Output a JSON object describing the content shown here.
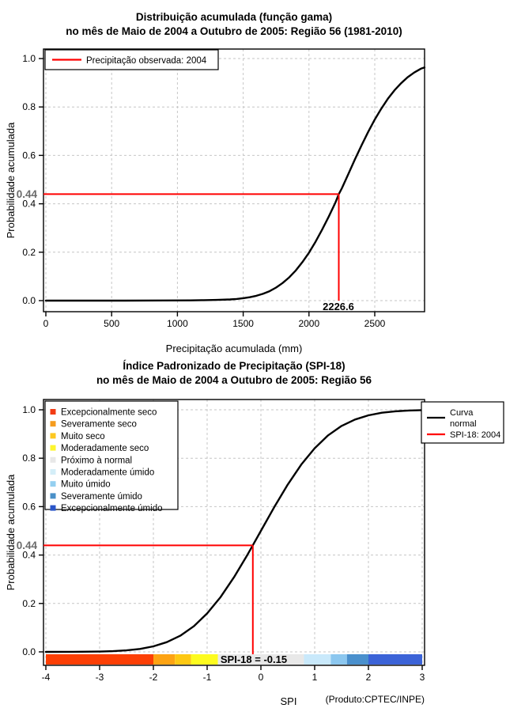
{
  "page": {
    "background": "#ffffff",
    "footer_credit": "(Produto:CPTEC/INPE)"
  },
  "chart_data": [
    {
      "type": "line",
      "title_line1": "Distribuição acumulada (função gama)",
      "title_line2": "no mês de Maio de 2004 a Outubro de 2005: Região 56 (1981-2010)",
      "xlabel": "Precipitação acumulada (mm)",
      "ylabel": "Probabilidade acumulada",
      "xlim": [
        0,
        2878
      ],
      "ylim": [
        0,
        1
      ],
      "grid": true,
      "x_ticks": [
        0,
        500,
        1000,
        1500,
        2000,
        2500
      ],
      "x_tick_labels": [
        "0",
        "500",
        "1000",
        "1500",
        "2000",
        "2500"
      ],
      "y_tick_values": [
        0,
        0.2,
        0.4,
        0.6,
        0.8,
        1.0
      ],
      "y_tick_labels": [
        "0.0",
        "0.2",
        "0.4",
        "0.6",
        "0.8",
        "1.0"
      ],
      "legend": {
        "position": "top-left",
        "items": [
          {
            "label": "Precipitação observada: 2004",
            "color": "#ff0000"
          }
        ]
      },
      "series": [
        {
          "name": "Distribuição acumulada (função gama)",
          "color": "#000000",
          "points": [
            [
              0,
              0
            ],
            [
              300,
              0
            ],
            [
              600,
              0
            ],
            [
              900,
              0.0005
            ],
            [
              1100,
              0.001
            ],
            [
              1200,
              0.002
            ],
            [
              1300,
              0.003
            ],
            [
              1400,
              0.005
            ],
            [
              1450,
              0.007
            ],
            [
              1500,
              0.01
            ],
            [
              1550,
              0.014
            ],
            [
              1600,
              0.02
            ],
            [
              1650,
              0.028
            ],
            [
              1700,
              0.039
            ],
            [
              1750,
              0.054
            ],
            [
              1800,
              0.073
            ],
            [
              1850,
              0.096
            ],
            [
              1900,
              0.125
            ],
            [
              1950,
              0.159
            ],
            [
              2000,
              0.198
            ],
            [
              2050,
              0.243
            ],
            [
              2100,
              0.293
            ],
            [
              2150,
              0.347
            ],
            [
              2200,
              0.404
            ],
            [
              2226.6,
              0.44
            ],
            [
              2250,
              0.464
            ],
            [
              2300,
              0.524
            ],
            [
              2350,
              0.584
            ],
            [
              2400,
              0.642
            ],
            [
              2450,
              0.697
            ],
            [
              2500,
              0.748
            ],
            [
              2550,
              0.793
            ],
            [
              2600,
              0.834
            ],
            [
              2650,
              0.869
            ],
            [
              2700,
              0.898
            ],
            [
              2750,
              0.923
            ],
            [
              2800,
              0.942
            ],
            [
              2850,
              0.958
            ],
            [
              2878,
              0.963
            ]
          ]
        }
      ],
      "marker": {
        "x": 2226.6,
        "y": 0.44,
        "x_label": "2226.6",
        "y_label": "0.44",
        "color": "#ff0000"
      }
    },
    {
      "type": "line",
      "title_line1": "Índice Padronizado de Precipitação (SPI-18)",
      "title_line2": "no mês de Maio de 2004 a Outubro de 2005: Região 56",
      "xlabel": "SPI",
      "ylabel": "Probabilidade acumulada",
      "xlim": [
        -4,
        3
      ],
      "ylim": [
        0,
        1
      ],
      "grid": true,
      "x_ticks": [
        -4,
        -3,
        -2,
        -1,
        0,
        1,
        2,
        3
      ],
      "x_tick_labels": [
        "-4",
        "-3",
        "-2",
        "-1",
        "0",
        "1",
        "2",
        "3"
      ],
      "y_tick_values": [
        0,
        0.2,
        0.4,
        0.6,
        0.8,
        1.0
      ],
      "y_tick_labels": [
        "0.0",
        "0.2",
        "0.4",
        "0.6",
        "0.8",
        "1.0"
      ],
      "categories_legend": [
        {
          "label": "Excepcionalmente seco",
          "color": "#f23c14"
        },
        {
          "label": "Severamente seco",
          "color": "#f59c1e"
        },
        {
          "label": "Muito seco",
          "color": "#fdc821"
        },
        {
          "label": "Moderadamente seco",
          "color": "#fdf52d"
        },
        {
          "label": "Próximo à normal",
          "color": "#e8e8e8"
        },
        {
          "label": "Moderadamente úmido",
          "color": "#d4eef8"
        },
        {
          "label": "Muito úmido",
          "color": "#94cff0"
        },
        {
          "label": "Severamente úmido",
          "color": "#4a90c8"
        },
        {
          "label": "Excepcionalmente úmido",
          "color": "#2a55c8"
        }
      ],
      "legend_right": {
        "items": [
          {
            "lines": [
              "Curva",
              "normal"
            ],
            "color": "#000000"
          },
          {
            "lines": [
              "SPI-18: 2004"
            ],
            "color": "#ff0000"
          }
        ]
      },
      "colorbar": {
        "boundaries": [
          -4,
          -2,
          -1.6,
          -1.3,
          -0.8,
          0.8,
          1.3,
          1.6,
          2,
          3
        ],
        "colors": [
          "#fc3f05",
          "#fda313",
          "#fdc813",
          "#fdfb1f",
          "#e8e8e8",
          "#c9e9fb",
          "#8cc7ef",
          "#4a90cd",
          "#3b63d7"
        ]
      },
      "series": [
        {
          "name": "Curva normal",
          "color": "#000000",
          "points": [
            [
              -4,
              3e-05
            ],
            [
              -3.5,
              0.0002
            ],
            [
              -3,
              0.0013
            ],
            [
              -2.75,
              0.003
            ],
            [
              -2.5,
              0.0062
            ],
            [
              -2.25,
              0.0122
            ],
            [
              -2,
              0.0228
            ],
            [
              -1.75,
              0.0401
            ],
            [
              -1.5,
              0.0668
            ],
            [
              -1.25,
              0.1056
            ],
            [
              -1,
              0.1587
            ],
            [
              -0.75,
              0.2266
            ],
            [
              -0.5,
              0.3085
            ],
            [
              -0.25,
              0.4013
            ],
            [
              -0.15,
              0.4404
            ],
            [
              0,
              0.5
            ],
            [
              0.25,
              0.5987
            ],
            [
              0.5,
              0.6915
            ],
            [
              0.75,
              0.7734
            ],
            [
              1,
              0.8413
            ],
            [
              1.25,
              0.8944
            ],
            [
              1.5,
              0.9332
            ],
            [
              1.75,
              0.9599
            ],
            [
              2,
              0.9772
            ],
            [
              2.25,
              0.9878
            ],
            [
              2.5,
              0.9938
            ],
            [
              2.75,
              0.997
            ],
            [
              3,
              0.9987
            ]
          ]
        }
      ],
      "marker": {
        "x": -0.15,
        "y": 0.44,
        "y_label": "0.44",
        "bar_label": "SPI-18 = -0.15",
        "color": "#ff0000"
      }
    }
  ]
}
